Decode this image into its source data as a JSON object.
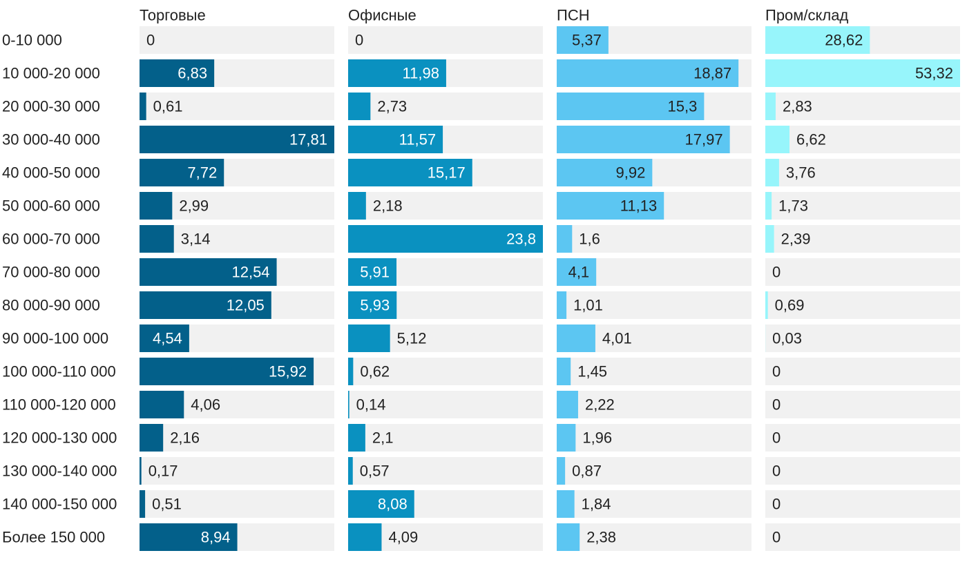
{
  "chart_data": {
    "type": "bar",
    "orientation": "horizontal",
    "layout": "small-multiples",
    "categories": [
      "0-10 000",
      "10 000-20 000",
      "20 000-30 000",
      "30 000-40 000",
      "40 000-50 000",
      "50 000-60 000",
      "60 000-70 000",
      "70 000-80 000",
      "80 000-90 000",
      "90 000-100 000",
      "100 000-110 000",
      "110 000-120 000",
      "120 000-130 000",
      "130 000-140 000",
      "140 000-150 000",
      "Более 150 000"
    ],
    "series": [
      {
        "name": "Торговые",
        "color": "#03608a",
        "xmax": 17.81,
        "values": [
          0,
          6.83,
          0.61,
          17.81,
          7.72,
          2.99,
          3.14,
          12.54,
          12.05,
          4.54,
          15.92,
          4.06,
          2.16,
          0.17,
          0.51,
          8.94
        ],
        "labels": [
          "0",
          "6,83",
          "0,61",
          "17,81",
          "7,72",
          "2,99",
          "3,14",
          "12,54",
          "12,05",
          "4,54",
          "15,92",
          "4,06",
          "2,16",
          "0,17",
          "0,51",
          "8,94"
        ]
      },
      {
        "name": "Офисные",
        "color": "#0a91c0",
        "xmax": 23.8,
        "values": [
          0,
          11.98,
          2.73,
          11.57,
          15.17,
          2.18,
          23.8,
          5.91,
          5.93,
          5.12,
          0.62,
          0.14,
          2.1,
          0.57,
          8.08,
          4.09
        ],
        "labels": [
          "0",
          "11,98",
          "2,73",
          "11,57",
          "15,17",
          "2,18",
          "23,8",
          "5,91",
          "5,93",
          "5,12",
          "0,62",
          "0,14",
          "2,1",
          "0,57",
          "8,08",
          "4,09"
        ]
      },
      {
        "name": "ПСН",
        "color": "#5cc6f2",
        "xmax": 20.22,
        "values": [
          5.37,
          18.87,
          15.3,
          17.97,
          9.92,
          11.13,
          1.6,
          4.1,
          1.01,
          4.01,
          1.45,
          2.22,
          1.96,
          0.87,
          1.84,
          2.38
        ],
        "labels": [
          "5,37",
          "18,87",
          "15,3",
          "17,97",
          "9,92",
          "11,13",
          "1,6",
          "4,1",
          "1,01",
          "4,01",
          "1,45",
          "2,22",
          "1,96",
          "0,87",
          "1,84",
          "2,38"
        ]
      },
      {
        "name": "Пром/склад",
        "color": "#97f5fb",
        "xmax": 53.32,
        "values": [
          28.62,
          53.32,
          2.83,
          6.62,
          3.76,
          1.73,
          2.39,
          0,
          0.69,
          0.03,
          0,
          0,
          0,
          0,
          0,
          0
        ],
        "labels": [
          "28,62",
          "53,32",
          "2,83",
          "6,62",
          "3,76",
          "1,73",
          "2,39",
          "0",
          "0,69",
          "0,03",
          "0",
          "0",
          "0",
          "0",
          "0",
          "0"
        ]
      }
    ],
    "track_color": "#f1f1f1",
    "label_color_dark": "#222222",
    "label_color_light": "#ffffff",
    "grid": false,
    "legend": "none"
  }
}
